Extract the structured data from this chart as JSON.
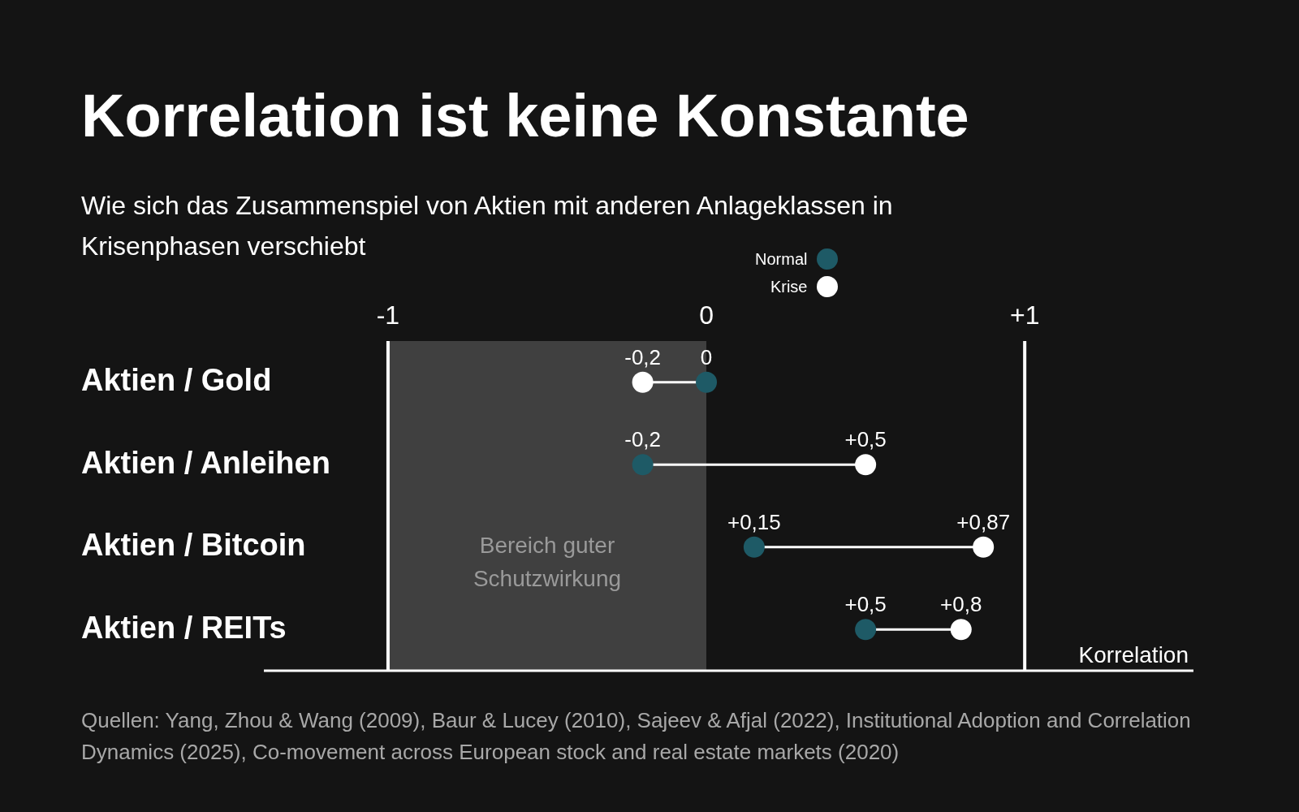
{
  "chart_data": {
    "type": "scatter",
    "orientation": "horizontal",
    "title": "Korrelation ist keine Konstante",
    "subtitle": "Wie sich das Zusammenspiel von Aktien mit anderen Anlageklassen in Krisenphasen verschiebt",
    "xlabel": "Korrelation",
    "categories": [
      "Aktien / Gold",
      "Aktien / Anleihen",
      "Aktien / Bitcoin",
      "Aktien / REITs"
    ],
    "series": [
      {
        "name": "Normal",
        "color": "#1e5a66",
        "values": [
          0,
          -0.2,
          0.15,
          0.5
        ],
        "value_labels": [
          "0",
          "-0,2",
          "+0,15",
          "+0,5"
        ]
      },
      {
        "name": "Krise",
        "color": "#ffffff",
        "values": [
          -0.2,
          0.5,
          0.87,
          0.8
        ],
        "value_labels": [
          "-0,2",
          "+0,5",
          "+0,87",
          "+0,8"
        ]
      }
    ],
    "xlim": [
      -1.39,
      1.53
    ],
    "xticks": [
      {
        "value": -1,
        "label": "-1"
      },
      0,
      {
        "value": 1,
        "label": "+1"
      }
    ],
    "bands": [
      {
        "axis": "x",
        "from": -1,
        "to": 0,
        "label": "Bereich guter Schutzwirkung",
        "color": "#404040"
      }
    ],
    "ref_lines": [
      {
        "axis": "x",
        "value": -1,
        "color": "#ffffff"
      },
      {
        "axis": "x",
        "value": 1,
        "color": "#ffffff"
      }
    ],
    "legend": "top",
    "annotations": [
      "Quellen: Yang, Zhou & Wang (2009), Baur & Lucey (2010), Sajeev & Afjal (2022), Institutional Adoption and Correlation Dynamics (2025), Co-movement across European stock and real estate markets (2020)"
    ]
  }
}
